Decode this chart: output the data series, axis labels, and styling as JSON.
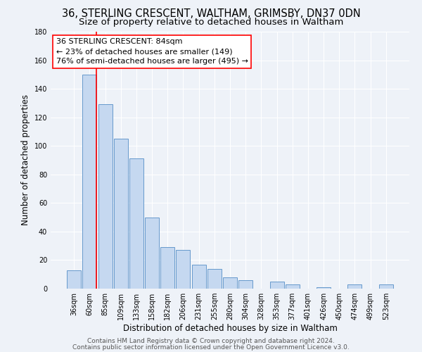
{
  "title": "36, STERLING CRESCENT, WALTHAM, GRIMSBY, DN37 0DN",
  "subtitle": "Size of property relative to detached houses in Waltham",
  "xlabel": "Distribution of detached houses by size in Waltham",
  "ylabel": "Number of detached properties",
  "bar_color": "#c5d8f0",
  "bar_edge_color": "#6699cc",
  "categories": [
    "36sqm",
    "60sqm",
    "85sqm",
    "109sqm",
    "133sqm",
    "158sqm",
    "182sqm",
    "206sqm",
    "231sqm",
    "255sqm",
    "280sqm",
    "304sqm",
    "328sqm",
    "353sqm",
    "377sqm",
    "401sqm",
    "426sqm",
    "450sqm",
    "474sqm",
    "499sqm",
    "523sqm"
  ],
  "values": [
    13,
    150,
    129,
    105,
    91,
    50,
    29,
    27,
    17,
    14,
    8,
    6,
    0,
    5,
    3,
    0,
    1,
    0,
    3,
    0,
    3
  ],
  "ylim": [
    0,
    180
  ],
  "yticks": [
    0,
    20,
    40,
    60,
    80,
    100,
    120,
    140,
    160,
    180
  ],
  "property_label": "36 STERLING CRESCENT: 84sqm",
  "annotation_line1": "← 23% of detached houses are smaller (149)",
  "annotation_line2": "76% of semi-detached houses are larger (495) →",
  "vline_bar_index": 1,
  "footer_line1": "Contains HM Land Registry data © Crown copyright and database right 2024.",
  "footer_line2": "Contains public sector information licensed under the Open Government Licence v3.0.",
  "background_color": "#eef2f8",
  "plot_bg_color": "#eef2f8",
  "grid_color": "#ffffff",
  "title_fontsize": 10.5,
  "subtitle_fontsize": 9.5,
  "axis_label_fontsize": 8.5,
  "tick_fontsize": 7,
  "footer_fontsize": 6.5,
  "annotation_fontsize": 8
}
